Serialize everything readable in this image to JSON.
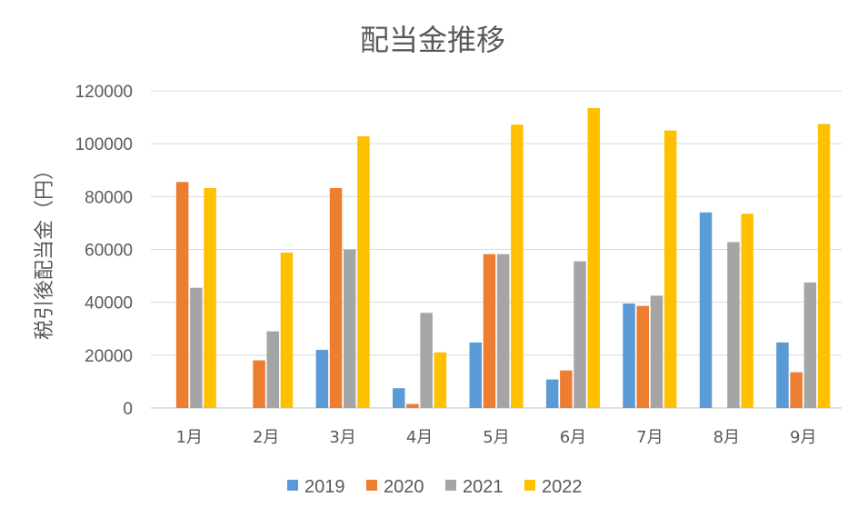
{
  "chart_data": {
    "type": "bar",
    "title": "配当金推移",
    "xlabel": "",
    "ylabel": "税引後配当金（円）",
    "ylim": [
      0,
      120000
    ],
    "yticks": [
      0,
      20000,
      40000,
      60000,
      80000,
      100000,
      120000
    ],
    "grid": true,
    "legend_position": "bottom",
    "categories": [
      "1月",
      "2月",
      "3月",
      "4月",
      "5月",
      "6月",
      "7月",
      "8月",
      "9月"
    ],
    "series": [
      {
        "name": "2019",
        "color": "#5B9BD5",
        "values": [
          0,
          0,
          22000,
          7500,
          24800,
          10800,
          39500,
          74000,
          24800
        ]
      },
      {
        "name": "2020",
        "color": "#ED7D31",
        "values": [
          85500,
          18000,
          83200,
          1500,
          58200,
          14200,
          38600,
          0,
          13500
        ]
      },
      {
        "name": "2021",
        "color": "#A5A5A5",
        "values": [
          45500,
          29000,
          60000,
          36000,
          58200,
          55500,
          42500,
          62800,
          47500
        ]
      },
      {
        "name": "2022",
        "color": "#FFC000",
        "values": [
          83200,
          58800,
          102800,
          21000,
          107200,
          113500,
          105000,
          73500,
          107500
        ]
      }
    ]
  }
}
